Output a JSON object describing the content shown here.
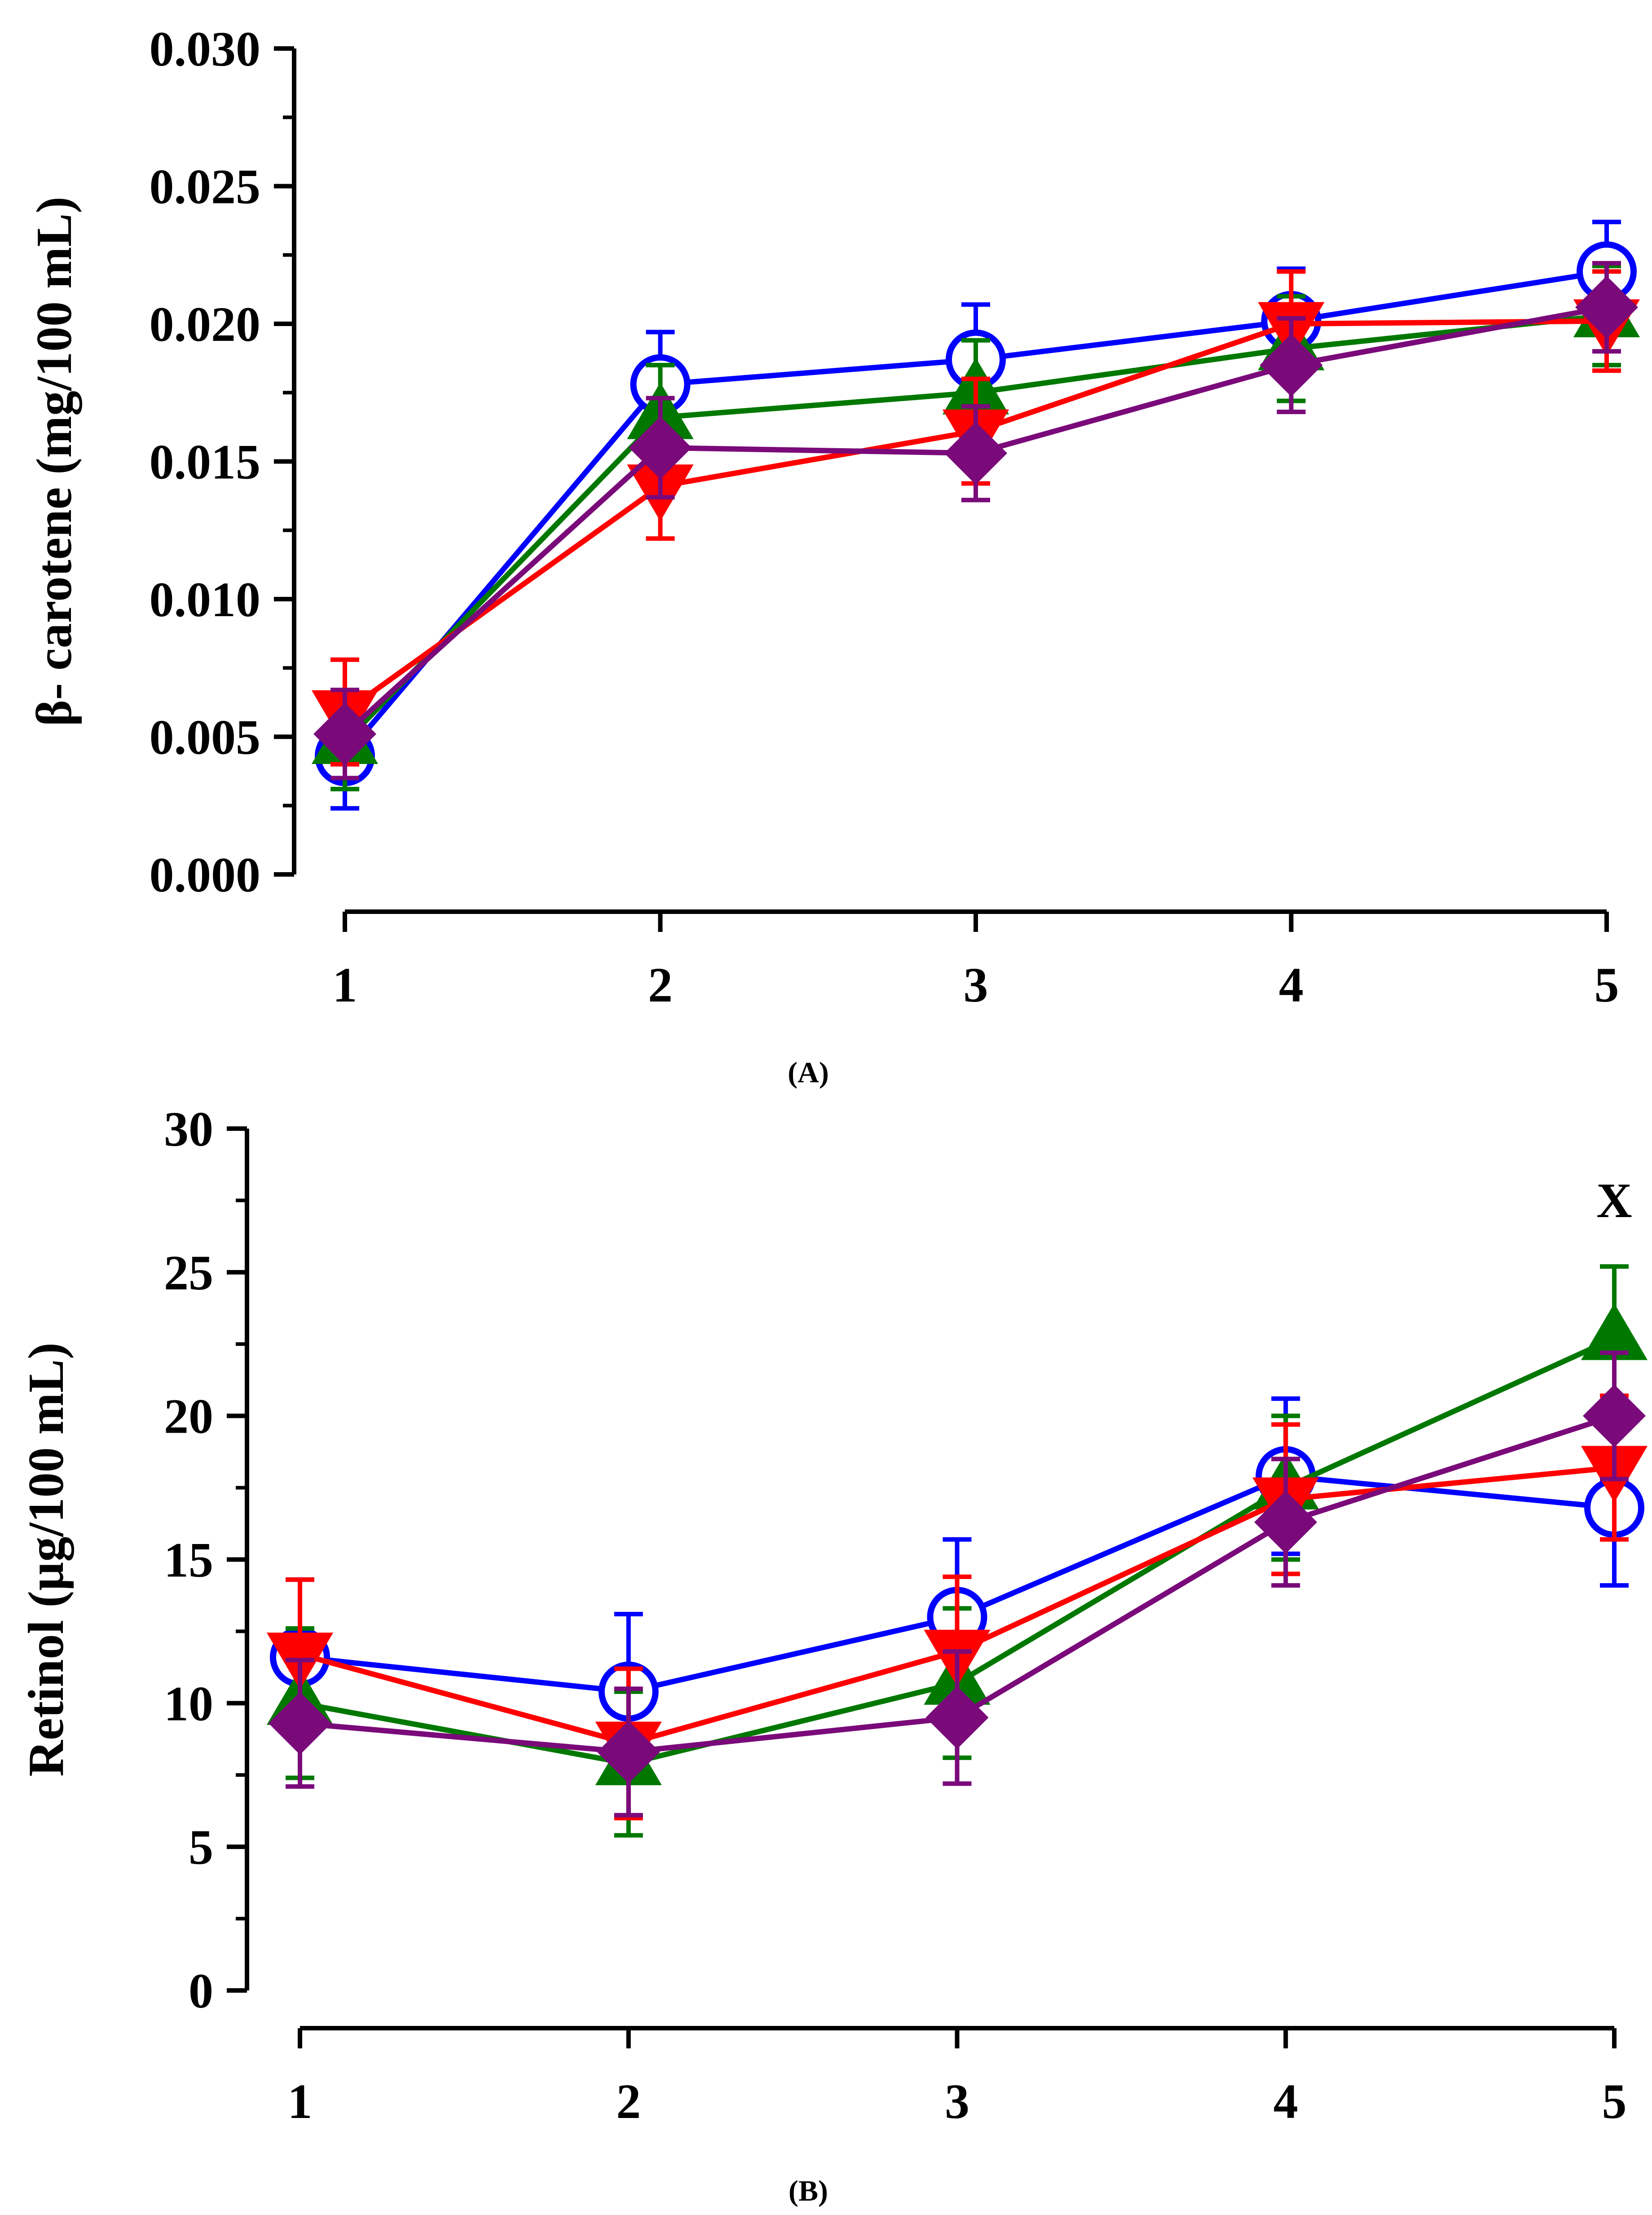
{
  "chart_data": [
    {
      "type": "line",
      "panel_label": "(A)",
      "ylabel": "β- carotene (mg/100 mL)",
      "xlabel": "",
      "categories": [
        "1",
        "2",
        "3",
        "4",
        "5"
      ],
      "ylim": [
        0,
        0.03
      ],
      "yticks": [
        "0.000",
        "0.005",
        "0.010",
        "0.015",
        "0.020",
        "0.025",
        "0.030"
      ],
      "legend": "none",
      "annotation": "",
      "series": [
        {
          "name": "blue-open-circle",
          "color": "#0000ff",
          "marker": "open-circle",
          "values": [
            0.0043,
            0.0178,
            0.0187,
            0.0201,
            0.0219
          ],
          "errors": [
            0.0019,
            0.0019,
            0.002,
            0.0019,
            0.0018
          ]
        },
        {
          "name": "green-triangle",
          "color": "#007800",
          "marker": "triangle-up",
          "values": [
            0.0048,
            0.0166,
            0.0175,
            0.0191,
            0.0203
          ],
          "errors": [
            0.0017,
            0.0019,
            0.0019,
            0.0019,
            0.0018
          ]
        },
        {
          "name": "red-inverted-triangle",
          "color": "#ff0000",
          "marker": "triangle-down",
          "values": [
            0.0059,
            0.0141,
            0.0161,
            0.02,
            0.0201
          ],
          "errors": [
            0.0019,
            0.0019,
            0.0019,
            0.0019,
            0.0018
          ]
        },
        {
          "name": "purple-diamond",
          "color": "#7a0a7a",
          "marker": "diamond",
          "values": [
            0.0051,
            0.0155,
            0.0153,
            0.0185,
            0.0206
          ],
          "errors": [
            0.0016,
            0.0018,
            0.0017,
            0.0017,
            0.0016
          ]
        }
      ]
    },
    {
      "type": "line",
      "panel_label": "(B)",
      "ylabel": "Retinol (µg/100 mL)",
      "xlabel": "",
      "categories": [
        "1",
        "2",
        "3",
        "4",
        "5"
      ],
      "ylim": [
        0,
        30
      ],
      "yticks": [
        "0",
        "5",
        "10",
        "15",
        "20",
        "25",
        "30"
      ],
      "legend": "none",
      "annotation": "X",
      "series": [
        {
          "name": "blue-open-circle",
          "color": "#0000ff",
          "marker": "open-circle",
          "values": [
            11.6,
            10.4,
            13.0,
            17.9,
            16.8
          ],
          "errors": [
            2.7,
            2.7,
            2.7,
            2.7,
            2.7
          ]
        },
        {
          "name": "green-triangle",
          "color": "#007800",
          "marker": "triangle-up",
          "values": [
            10.0,
            7.9,
            10.7,
            17.5,
            22.7
          ],
          "errors": [
            2.6,
            2.5,
            2.6,
            2.5,
            2.5
          ]
        },
        {
          "name": "red-inverted-triangle",
          "color": "#ff0000",
          "marker": "triangle-down",
          "values": [
            11.7,
            8.6,
            11.8,
            17.1,
            18.2
          ],
          "errors": [
            2.6,
            2.6,
            2.6,
            2.6,
            2.5
          ]
        },
        {
          "name": "purple-diamond",
          "color": "#7a0a7a",
          "marker": "diamond",
          "values": [
            9.3,
            8.3,
            9.5,
            16.3,
            20.0
          ],
          "errors": [
            2.2,
            2.2,
            2.3,
            2.2,
            2.2
          ]
        }
      ]
    }
  ]
}
